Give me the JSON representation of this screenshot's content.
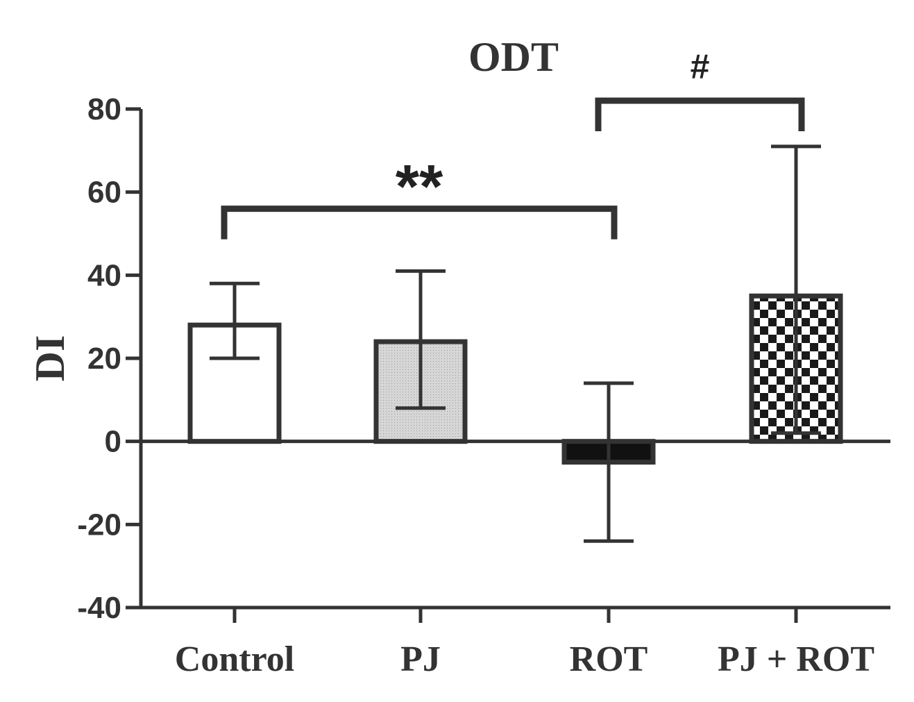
{
  "chart_data": {
    "type": "bar",
    "title": "ODT",
    "ylabel": "DI",
    "xlabel": "",
    "categories": [
      "Control",
      "PJ",
      "ROT",
      "PJ + ROT"
    ],
    "values": [
      28,
      24,
      -5,
      35
    ],
    "error_high": [
      38,
      41,
      14,
      71
    ],
    "error_low": [
      20,
      8,
      -24,
      2
    ],
    "ylim": [
      -40,
      80
    ],
    "yticks": [
      80,
      60,
      40,
      20,
      0,
      -20,
      -40
    ],
    "ytick_labels": [
      "80",
      "60",
      "40",
      "20",
      "0",
      "-20",
      "-40"
    ],
    "fills": [
      "white",
      "light-gray",
      "black",
      "checker"
    ],
    "significance": [
      {
        "from": 0,
        "to": 2,
        "label": "**",
        "level": 56
      },
      {
        "from": 2,
        "to": 3,
        "label": "#",
        "level": 82
      }
    ],
    "grid": false,
    "legend": "none"
  },
  "colors": {
    "axis": "#333333",
    "bar_stroke": "#333333",
    "gray_fill": "#cfcfcf",
    "black_fill": "#111111",
    "white_fill": "#ffffff"
  }
}
